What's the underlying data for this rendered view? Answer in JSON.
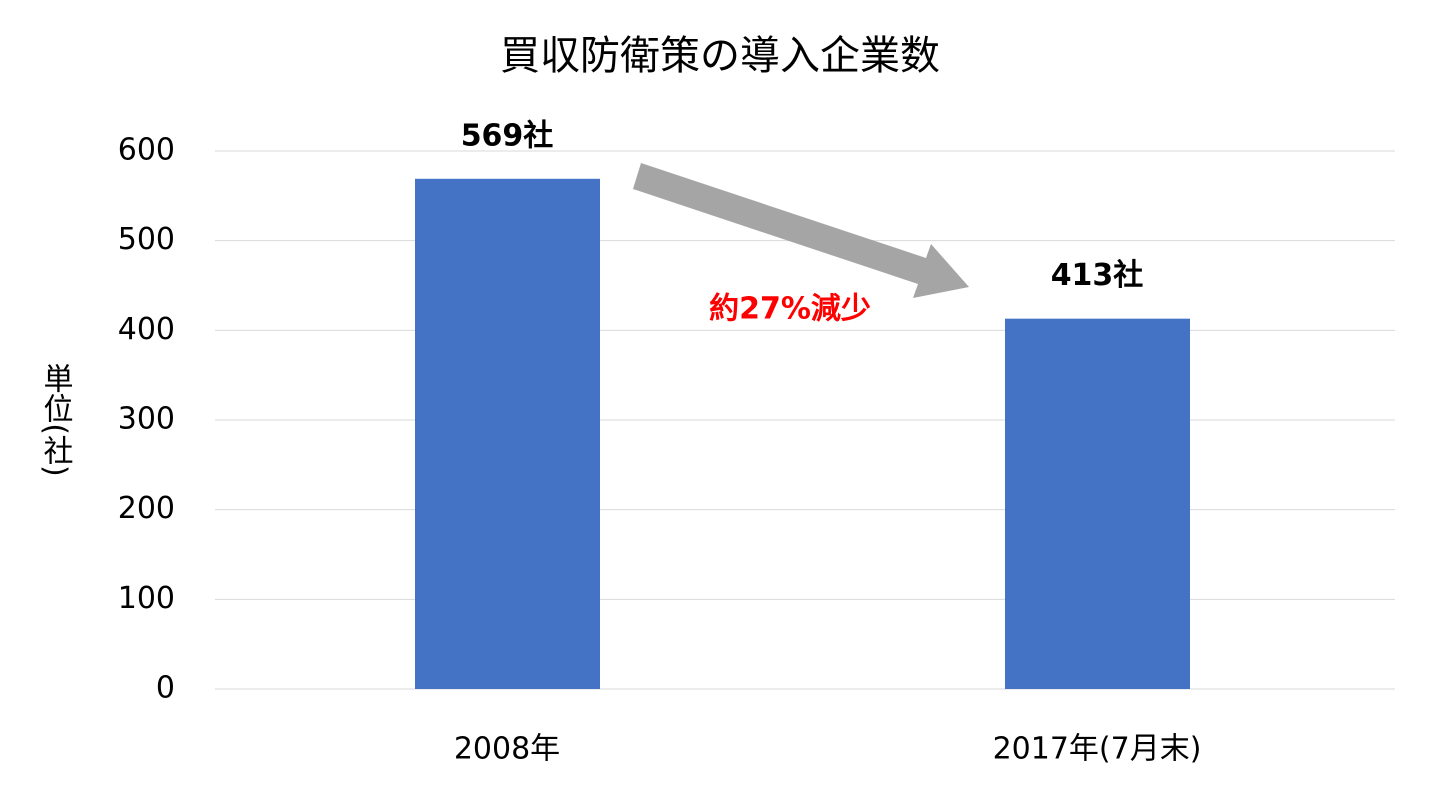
{
  "chart_data": {
    "type": "bar",
    "title": "買収防衛策の導入企業数",
    "y_axis_label": "単位(社)",
    "categories": [
      "2008年",
      "2017年(7月末)"
    ],
    "values": [
      569,
      413
    ],
    "value_labels": [
      "569社",
      "413社"
    ],
    "color": "#4472c4",
    "ylim": [
      0,
      600
    ],
    "yticks": [
      0,
      100,
      200,
      300,
      400,
      500,
      600
    ],
    "grid": true,
    "annotation": "約27%減少"
  }
}
